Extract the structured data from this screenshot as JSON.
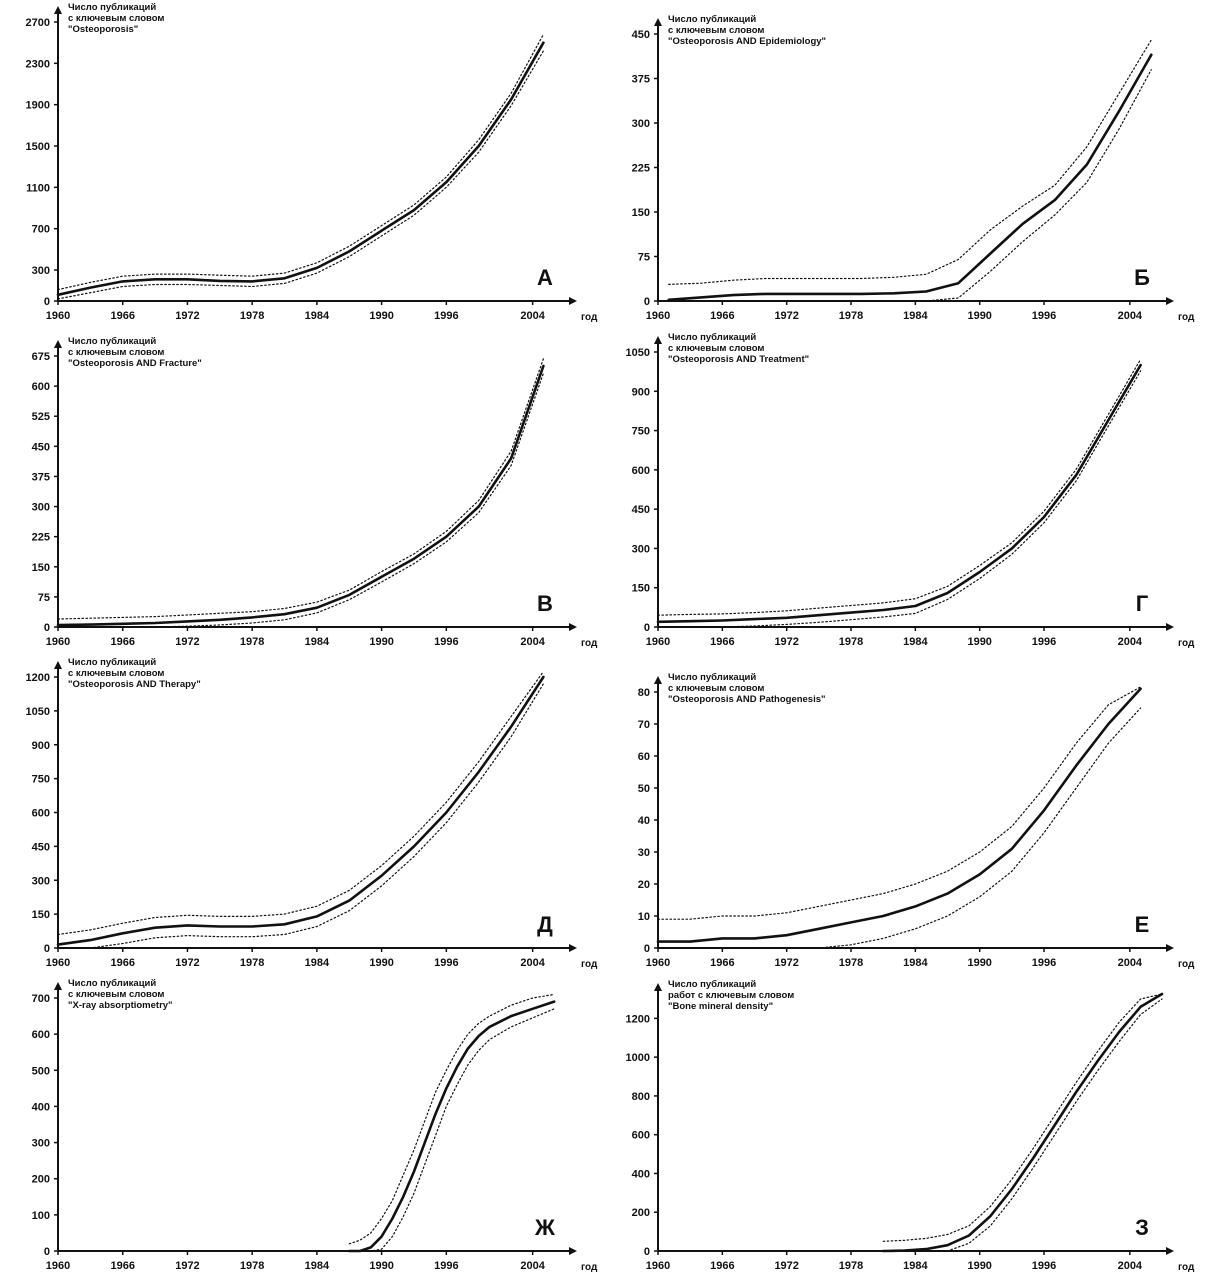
{
  "chart_data": [
    {
      "panel": "А",
      "type": "line",
      "title": [
        "Число публикаций",
        "с ключевым словом",
        "\"Osteoporosis\""
      ],
      "xlabel": "год",
      "xlim": [
        1960,
        2007
      ],
      "xticks": [
        "1960",
        "1966",
        "1972",
        "1978",
        "1984",
        "1990",
        "1996",
        "2004"
      ],
      "ylim": [
        0,
        2700
      ],
      "yticks": [
        "0",
        "300",
        "700",
        "1100",
        "1500",
        "1900",
        "2300",
        "2700"
      ],
      "x": [
        1960,
        1963,
        1966,
        1969,
        1972,
        1975,
        1978,
        1981,
        1984,
        1987,
        1990,
        1993,
        1996,
        1999,
        2002,
        2005
      ],
      "series": [
        {
          "values": [
            60,
            130,
            190,
            210,
            210,
            195,
            190,
            220,
            320,
            480,
            680,
            880,
            1150,
            1500,
            1950,
            2500
          ]
        },
        {
          "values": [
            110,
            180,
            240,
            260,
            260,
            250,
            240,
            270,
            370,
            530,
            730,
            930,
            1200,
            1560,
            2010,
            2580
          ],
          "style": "dotted"
        },
        {
          "values": [
            20,
            80,
            140,
            160,
            160,
            150,
            140,
            170,
            270,
            430,
            630,
            830,
            1100,
            1440,
            1890,
            2420
          ],
          "style": "dotted"
        }
      ]
    },
    {
      "panel": "Б",
      "type": "line",
      "title": [
        "Число публикаций",
        "с ключевым словом",
        "\"Osteoporosis AND Epidemiology\""
      ],
      "xlabel": "год",
      "xlim": [
        1960,
        2007
      ],
      "xticks": [
        "1960",
        "1966",
        "1972",
        "1978",
        "1984",
        "1990",
        "1996",
        "2004"
      ],
      "ylim": [
        0,
        450
      ],
      "yticks": [
        "0",
        "75",
        "150",
        "225",
        "300",
        "375",
        "450"
      ],
      "x": [
        1961,
        1964,
        1967,
        1970,
        1973,
        1976,
        1979,
        1982,
        1985,
        1988,
        1991,
        1994,
        1997,
        2000,
        2003,
        2006
      ],
      "series": [
        {
          "values": [
            2,
            6,
            10,
            12,
            12,
            12,
            12,
            13,
            16,
            30,
            80,
            130,
            170,
            230,
            320,
            415
          ]
        },
        {
          "values": [
            28,
            30,
            35,
            38,
            38,
            38,
            38,
            40,
            45,
            70,
            120,
            160,
            195,
            260,
            350,
            440
          ],
          "style": "dotted"
        },
        {
          "values": [
            0,
            0,
            0,
            0,
            0,
            0,
            0,
            0,
            0,
            5,
            50,
            100,
            145,
            200,
            290,
            390
          ],
          "style": "dotted"
        }
      ]
    },
    {
      "panel": "В",
      "type": "line",
      "title": [
        "Число публикаций",
        "с ключевым словом",
        "\"Osteoporosis AND Fracture\""
      ],
      "xlabel": "год",
      "xlim": [
        1960,
        2007
      ],
      "xticks": [
        "1960",
        "1966",
        "1972",
        "1978",
        "1984",
        "1990",
        "1996",
        "2004"
      ],
      "ylim": [
        0,
        675
      ],
      "yticks": [
        "0",
        "75",
        "150",
        "225",
        "300",
        "375",
        "450",
        "525",
        "600",
        "675"
      ],
      "x": [
        1960,
        1963,
        1966,
        1969,
        1972,
        1975,
        1978,
        1981,
        1984,
        1987,
        1990,
        1993,
        1996,
        1999,
        2002,
        2005
      ],
      "series": [
        {
          "values": [
            5,
            6,
            8,
            10,
            14,
            18,
            24,
            32,
            48,
            80,
            125,
            170,
            225,
            300,
            420,
            650
          ]
        },
        {
          "values": [
            20,
            22,
            24,
            26,
            30,
            34,
            38,
            46,
            62,
            92,
            138,
            182,
            238,
            315,
            438,
            668
          ],
          "style": "dotted"
        },
        {
          "values": [
            0,
            0,
            0,
            0,
            2,
            5,
            10,
            18,
            35,
            68,
            112,
            158,
            212,
            285,
            402,
            632
          ],
          "style": "dotted"
        }
      ]
    },
    {
      "panel": "Г",
      "type": "line",
      "title": [
        "Число публикаций",
        "с ключевым словом",
        "\"Osteoporosis AND Treatment\""
      ],
      "xlabel": "год",
      "xlim": [
        1960,
        2007
      ],
      "xticks": [
        "1960",
        "1966",
        "1972",
        "1978",
        "1984",
        "1990",
        "1996",
        "2004"
      ],
      "ylim": [
        0,
        1050
      ],
      "yticks": [
        "0",
        "150",
        "300",
        "450",
        "600",
        "750",
        "900",
        "1050"
      ],
      "x": [
        1960,
        1963,
        1966,
        1969,
        1972,
        1975,
        1978,
        1981,
        1984,
        1987,
        1990,
        1993,
        1996,
        1999,
        2002,
        2005
      ],
      "series": [
        {
          "values": [
            20,
            22,
            25,
            30,
            35,
            45,
            55,
            65,
            80,
            130,
            210,
            300,
            420,
            580,
            790,
            1000
          ]
        },
        {
          "values": [
            45,
            48,
            50,
            55,
            62,
            72,
            82,
            92,
            108,
            155,
            235,
            322,
            442,
            602,
            812,
            1022
          ],
          "style": "dotted"
        },
        {
          "values": [
            0,
            0,
            0,
            4,
            10,
            18,
            28,
            38,
            52,
            105,
            185,
            278,
            398,
            558,
            768,
            978
          ],
          "style": "dotted"
        }
      ]
    },
    {
      "panel": "Д",
      "type": "line",
      "title": [
        "Число публикаций",
        "с ключевым словом",
        "\"Osteoporosis AND Therapy\""
      ],
      "xlabel": "год",
      "xlim": [
        1960,
        2007
      ],
      "xticks": [
        "1960",
        "1966",
        "1972",
        "1978",
        "1984",
        "1990",
        "1996",
        "2004"
      ],
      "ylim": [
        0,
        1200
      ],
      "yticks": [
        "0",
        "150",
        "300",
        "450",
        "600",
        "750",
        "900",
        "1050",
        "1200"
      ],
      "x": [
        1960,
        1963,
        1966,
        1969,
        1972,
        1975,
        1978,
        1981,
        1984,
        1987,
        1990,
        1993,
        1996,
        1999,
        2002,
        2005
      ],
      "series": [
        {
          "values": [
            15,
            35,
            65,
            90,
            100,
            95,
            95,
            105,
            140,
            210,
            320,
            450,
            600,
            780,
            980,
            1200
          ]
        },
        {
          "values": [
            60,
            80,
            110,
            135,
            145,
            140,
            140,
            150,
            185,
            255,
            365,
            495,
            645,
            825,
            1025,
            1230
          ],
          "style": "dotted"
        },
        {
          "values": [
            0,
            0,
            20,
            45,
            55,
            50,
            50,
            60,
            95,
            165,
            275,
            405,
            555,
            735,
            935,
            1170
          ],
          "style": "dotted"
        }
      ]
    },
    {
      "panel": "Е",
      "type": "line",
      "title": [
        "Число публикаций",
        "с ключевым словом",
        "\"Osteoporosis AND Pathogenesis\""
      ],
      "xlabel": "год",
      "xlim": [
        1960,
        2007
      ],
      "xticks": [
        "1960",
        "1966",
        "1972",
        "1978",
        "1984",
        "1990",
        "1996",
        "2004"
      ],
      "ylim": [
        0,
        80
      ],
      "yticks": [
        "0",
        "10",
        "20",
        "30",
        "40",
        "50",
        "60",
        "70",
        "80"
      ],
      "x": [
        1960,
        1963,
        1966,
        1969,
        1972,
        1975,
        1978,
        1981,
        1984,
        1987,
        1990,
        1993,
        1996,
        1999,
        2002,
        2005
      ],
      "series": [
        {
          "values": [
            2,
            2,
            3,
            3,
            4,
            6,
            8,
            10,
            13,
            17,
            23,
            31,
            43,
            57,
            70,
            81
          ]
        },
        {
          "values": [
            9,
            9,
            10,
            10,
            11,
            13,
            15,
            17,
            20,
            24,
            30,
            38,
            50,
            64,
            76,
            85
          ],
          "style": "dotted"
        },
        {
          "values": [
            0,
            0,
            0,
            0,
            0,
            0,
            1,
            3,
            6,
            10,
            16,
            24,
            36,
            50,
            64,
            75
          ],
          "style": "dotted"
        }
      ]
    },
    {
      "panel": "Ж",
      "type": "line",
      "title": [
        "Число публикаций",
        "с ключевым словом",
        "\"X-ray absorptiometry\""
      ],
      "xlabel": "год",
      "xlim": [
        1960,
        2007
      ],
      "xticks": [
        "1960",
        "1966",
        "1972",
        "1978",
        "1984",
        "1990",
        "1996",
        "2004"
      ],
      "ylim": [
        0,
        700
      ],
      "yticks": [
        "0",
        "100",
        "200",
        "300",
        "400",
        "500",
        "600",
        "700"
      ],
      "x": [
        1987,
        1988,
        1989,
        1990,
        1991,
        1992,
        1993,
        1994,
        1995,
        1996,
        1997,
        1998,
        1999,
        2000,
        2002,
        2004,
        2006
      ],
      "series": [
        {
          "values": [
            0,
            0,
            10,
            40,
            90,
            150,
            220,
            300,
            380,
            450,
            510,
            560,
            595,
            620,
            650,
            670,
            690
          ]
        },
        {
          "values": [
            20,
            30,
            50,
            90,
            140,
            210,
            280,
            360,
            440,
            500,
            555,
            600,
            630,
            650,
            680,
            700,
            710
          ],
          "style": "dotted"
        },
        {
          "values": [
            0,
            0,
            0,
            5,
            40,
            95,
            160,
            240,
            320,
            400,
            460,
            515,
            555,
            585,
            620,
            645,
            670
          ],
          "style": "dotted"
        }
      ]
    },
    {
      "panel": "З",
      "type": "line",
      "title": [
        "Число публикаций",
        "работ с ключевым словом",
        "\"Bone mineral density\""
      ],
      "xlabel": "год",
      "xlim": [
        1960,
        2007
      ],
      "xticks": [
        "1960",
        "1966",
        "1972",
        "1978",
        "1984",
        "1990",
        "1996",
        "2004"
      ],
      "ylim": [
        0,
        1300
      ],
      "yticks": [
        "0",
        "200",
        "400",
        "600",
        "800",
        "1000",
        "1200"
      ],
      "x": [
        1981,
        1983,
        1985,
        1987,
        1989,
        1991,
        1993,
        1995,
        1997,
        1999,
        2001,
        2003,
        2005,
        2007
      ],
      "series": [
        {
          "values": [
            0,
            2,
            10,
            30,
            80,
            180,
            320,
            480,
            650,
            820,
            980,
            1130,
            1260,
            1330
          ]
        },
        {
          "values": [
            50,
            55,
            65,
            85,
            130,
            230,
            370,
            530,
            700,
            870,
            1030,
            1180,
            1300,
            1360
          ],
          "style": "dotted"
        },
        {
          "values": [
            0,
            0,
            0,
            0,
            40,
            130,
            270,
            430,
            600,
            770,
            930,
            1080,
            1220,
            1300
          ],
          "style": "dotted"
        }
      ]
    }
  ]
}
